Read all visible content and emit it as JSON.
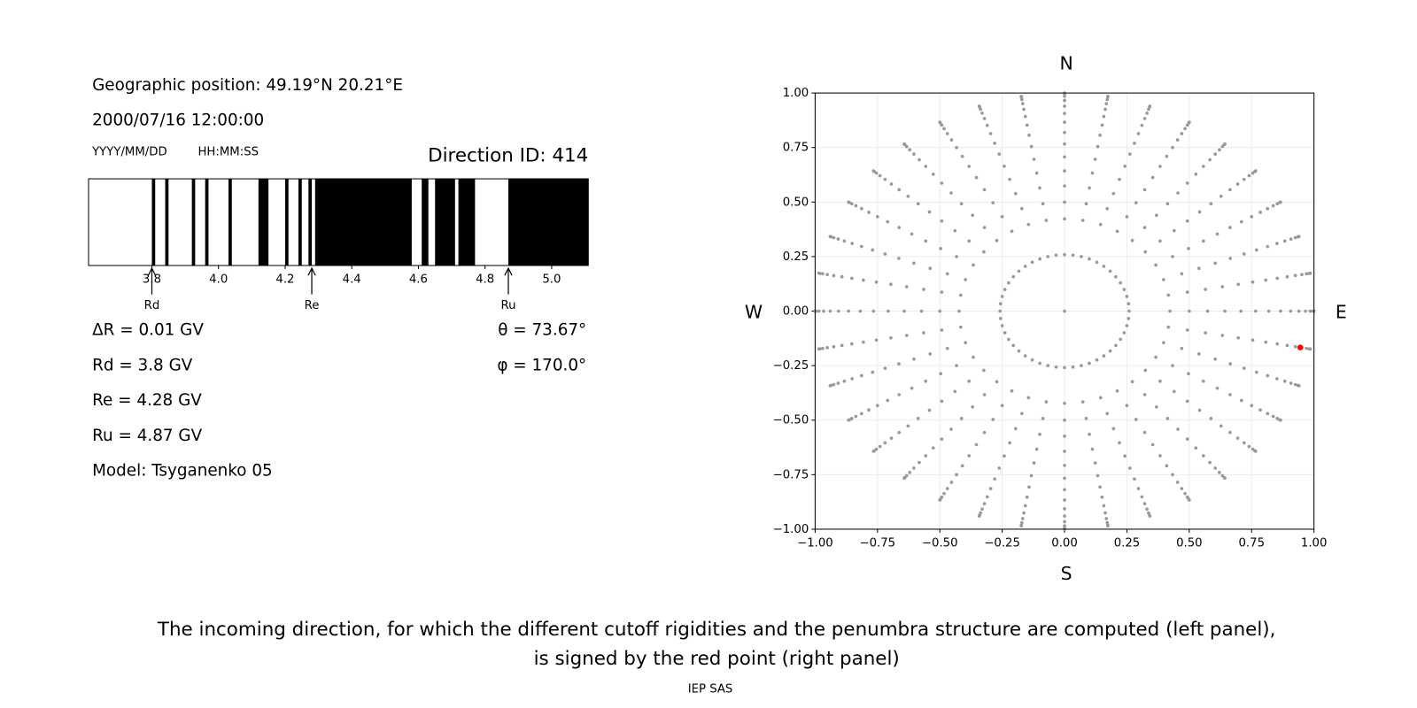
{
  "text": {
    "geo": "Geographic position: 49.19°N 20.21°E",
    "datetime": "2000/07/16 12:00:00",
    "date_hint": "YYYY/MM/DD",
    "time_hint": "HH:MM:SS",
    "direction": "Direction ID: 414",
    "lines": [
      "ΔR = 0.01 GV",
      "Rd = 3.8 GV",
      "Re = 4.28 GV",
      "Ru = 4.87 GV",
      "Model: Tsyganenko 05"
    ],
    "angles": [
      "θ = 73.67°",
      "φ = 170.0°"
    ],
    "caption": [
      "The incoming direction, for which the different cutoff rigidities and the penumbra structure are computed (left panel),",
      "is signed by the red point (right panel)"
    ],
    "credit": "IEP SAS"
  },
  "chart_data": [
    {
      "type": "penumbra",
      "xlim": [
        3.61,
        5.11
      ],
      "xticks": [
        3.8,
        {
          "value": 4,
          "label": "4.0"
        },
        4.2,
        4.4,
        4.6,
        4.8,
        {
          "value": 5,
          "label": "5.0"
        }
      ],
      "color": "#000000",
      "forbidden_bands": [
        [
          3.8,
          3.81
        ],
        [
          3.84,
          3.85
        ],
        [
          3.92,
          3.93
        ],
        [
          3.96,
          3.97
        ],
        [
          4.03,
          4.04
        ],
        [
          4.12,
          4.15
        ],
        [
          4.2,
          4.21
        ],
        [
          4.24,
          4.25
        ],
        [
          4.27,
          4.28
        ],
        [
          4.29,
          4.58
        ],
        [
          4.61,
          4.63
        ],
        [
          4.65,
          4.71
        ],
        [
          4.72,
          4.77
        ],
        [
          4.87,
          5.11
        ]
      ],
      "cutoffs": [
        {
          "name": "Rd",
          "value": 3.8
        },
        {
          "name": "Re",
          "value": 4.28
        },
        {
          "name": "Ru",
          "value": 4.87
        }
      ]
    },
    {
      "type": "sky",
      "xlim": [
        -1,
        1
      ],
      "ylim": [
        -1,
        1
      ],
      "grid": true,
      "xticks": [
        {
          "value": -1,
          "label": "−1.00"
        },
        {
          "value": -0.75,
          "label": "−0.75"
        },
        {
          "value": -0.5,
          "label": "−0.50"
        },
        {
          "value": -0.25,
          "label": "−0.25"
        },
        {
          "value": 0,
          "label": "0.00"
        },
        {
          "value": 0.25,
          "label": "0.25"
        },
        {
          "value": 0.5,
          "label": "0.50"
        },
        {
          "value": 0.75,
          "label": "0.75"
        },
        {
          "value": 1,
          "label": "1.00"
        }
      ],
      "yticks": [
        {
          "value": -1,
          "label": "−1.00"
        },
        {
          "value": -0.75,
          "label": "−0.75"
        },
        {
          "value": -0.5,
          "label": "−0.50"
        },
        {
          "value": -0.25,
          "label": "−0.25"
        },
        {
          "value": 0,
          "label": "0.00"
        },
        {
          "value": 0.25,
          "label": "0.25"
        },
        {
          "value": 0.5,
          "label": "0.50"
        },
        {
          "value": 0.75,
          "label": "0.75"
        },
        {
          "value": 1,
          "label": "1.00"
        }
      ],
      "compass": [
        "N",
        "S",
        "W",
        "E"
      ],
      "color": "#999999",
      "highlight_color": "#ff0000",
      "center": {
        "zenith": 0,
        "azimuth": 0
      },
      "inner_ring": {
        "zenith": 15,
        "azimuths": [
          0,
          7.5,
          15,
          22.5,
          30,
          37.5,
          45,
          52.5,
          60,
          67.5,
          75,
          82.5,
          90,
          97.5,
          105,
          112.5,
          120,
          127.5,
          135,
          142.5,
          150,
          157.5,
          165,
          172.5,
          180,
          187.5,
          195,
          202.5,
          210,
          217.5,
          225,
          232.5,
          240,
          247.5,
          255,
          262.5,
          270,
          277.5,
          285,
          292.5,
          300,
          307.5,
          315,
          322.5,
          330,
          337.5,
          345,
          352.5
        ]
      },
      "radial_zeniths": [
        25,
        30,
        35,
        40,
        45,
        50,
        55,
        60,
        65,
        70,
        75,
        80,
        85,
        90
      ],
      "radial_azimuths": [
        0,
        10,
        20,
        30,
        40,
        50,
        60,
        70,
        80,
        90,
        100,
        110,
        120,
        130,
        140,
        150,
        160,
        170,
        180,
        190,
        200,
        210,
        220,
        230,
        240,
        250,
        260,
        270,
        280,
        290,
        300,
        310,
        320,
        330,
        340,
        350
      ],
      "selected": {
        "zenith": 73.67,
        "azimuth": 170
      }
    }
  ]
}
